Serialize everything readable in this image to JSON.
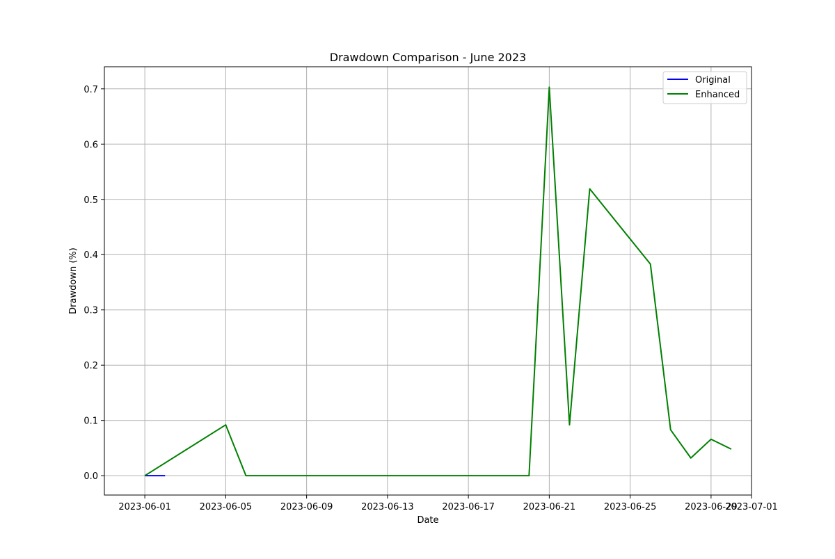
{
  "chart_data": {
    "type": "line",
    "title": "Drawdown Comparison - June 2023",
    "xlabel": "Date",
    "ylabel": "Drawdown (%)",
    "xlim": [
      "2023-05-30",
      "2023-07-01"
    ],
    "ylim": [
      -0.035,
      0.74
    ],
    "x_ticks": [
      "2023-06-01",
      "2023-06-05",
      "2023-06-09",
      "2023-06-13",
      "2023-06-17",
      "2023-06-21",
      "2023-06-25",
      "2023-06-29",
      "2023-07-01"
    ],
    "y_ticks": [
      "0.0",
      "0.1",
      "0.2",
      "0.3",
      "0.4",
      "0.5",
      "0.6",
      "0.7"
    ],
    "grid": true,
    "legend_position": "top-right",
    "series": [
      {
        "name": "Original",
        "color": "#0000ff",
        "x": [
          "2023-06-01",
          "2023-06-02"
        ],
        "y": [
          0.0,
          0.0
        ]
      },
      {
        "name": "Enhanced",
        "color": "#008000",
        "x": [
          "2023-06-01",
          "2023-06-05",
          "2023-06-06",
          "2023-06-20",
          "2023-06-21",
          "2023-06-22",
          "2023-06-23",
          "2023-06-26",
          "2023-06-27",
          "2023-06-28",
          "2023-06-29",
          "2023-06-30"
        ],
        "y": [
          0.0,
          0.092,
          0.0,
          0.0,
          0.703,
          0.092,
          0.519,
          0.383,
          0.083,
          0.032,
          0.066,
          0.048
        ]
      }
    ]
  }
}
